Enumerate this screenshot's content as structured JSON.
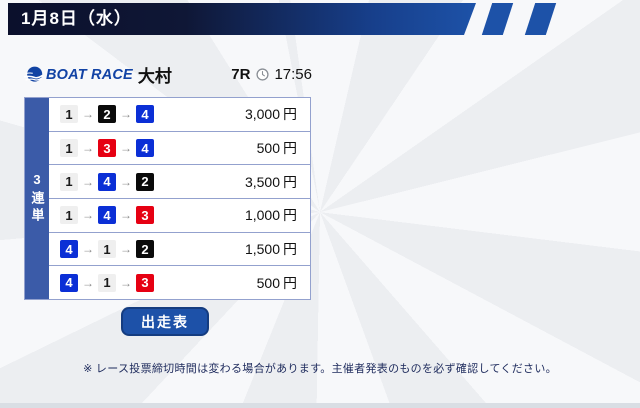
{
  "header": {
    "date": "1月8日（水）"
  },
  "venue": {
    "brand": "BOAT RACE",
    "name": "大村"
  },
  "race": {
    "number": "7R",
    "deadline": "17:56"
  },
  "bet_type": "3連単",
  "arrow_glyph": "→",
  "bets": [
    {
      "combo": [
        "1",
        "2",
        "4"
      ],
      "amount": "3,000",
      "unit": "円"
    },
    {
      "combo": [
        "1",
        "3",
        "4"
      ],
      "amount": "500",
      "unit": "円"
    },
    {
      "combo": [
        "1",
        "4",
        "2"
      ],
      "amount": "3,500",
      "unit": "円"
    },
    {
      "combo": [
        "1",
        "4",
        "3"
      ],
      "amount": "1,000",
      "unit": "円"
    },
    {
      "combo": [
        "4",
        "1",
        "2"
      ],
      "amount": "1,500",
      "unit": "円"
    },
    {
      "combo": [
        "4",
        "1",
        "3"
      ],
      "amount": "500",
      "unit": "円"
    }
  ],
  "boat_colors": {
    "1": {
      "bg": "#efefef",
      "fg": "#1a1a1a"
    },
    "2": {
      "bg": "#0a0a0a",
      "fg": "#ffffff"
    },
    "3": {
      "bg": "#e60012",
      "fg": "#ffffff"
    },
    "4": {
      "bg": "#0b2fd6",
      "fg": "#ffffff"
    }
  },
  "button_label": "出走表",
  "note": "※ レース投票締切時間は変わる場合があります。主催者発表のものを必ず確認してください。",
  "colors": {
    "banner_gradient_start": "#0b102c",
    "banner_gradient_end": "#1d52a8",
    "slash_blue": "#1d52a8",
    "bet_type_column": "#3b5ba8",
    "table_border": "#93a1ce",
    "button_blue": "#1d51a8",
    "button_border": "#143c80",
    "brand_blue": "#1243a5",
    "note_navy": "#1d2a5c"
  },
  "icons": {
    "logo": "boatrace-swirl-icon",
    "clock": "clock-icon"
  }
}
